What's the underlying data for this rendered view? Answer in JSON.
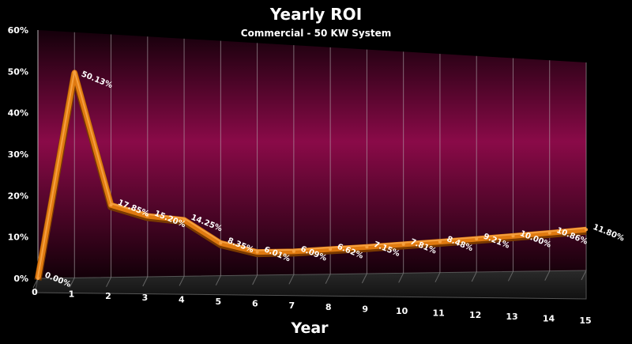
{
  "chart_data": {
    "type": "line",
    "title": "Yearly ROI",
    "subtitle": "Commercial  - 50 KW System",
    "xlabel": "Year",
    "ylabel": "",
    "categories": [
      "0",
      "1",
      "2",
      "3",
      "4",
      "5",
      "6",
      "7",
      "8",
      "9",
      "10",
      "11",
      "12",
      "13",
      "14",
      "15"
    ],
    "series": [
      {
        "name": "",
        "values": [
          0.0,
          50.13,
          17.85,
          15.2,
          14.25,
          8.35,
          6.01,
          6.09,
          6.62,
          7.15,
          7.81,
          8.48,
          9.21,
          10.0,
          10.86,
          11.8
        ],
        "data_labels": [
          "0.00%",
          "50.13%",
          "17.85%",
          "15.20%",
          "14.25%",
          "8.35%",
          "6.01%",
          "6.09%",
          "6.62%",
          "7.15%",
          "7.81%",
          "8.48%",
          "9.21%",
          "10.00%",
          "10.86%",
          "11.80%"
        ]
      }
    ],
    "yticks": [
      "0%",
      "10%",
      "20%",
      "30%",
      "40%",
      "50%",
      "60%"
    ],
    "ylim": [
      0,
      60
    ],
    "grid": true,
    "legend": "none",
    "colors": {
      "line": "#e07a10",
      "line_highlight": "#f5a040",
      "wall_mid": "#8a0a48",
      "wall_edge": "#1a0010",
      "floor": "#1c1c1c",
      "background": "#000000"
    }
  }
}
